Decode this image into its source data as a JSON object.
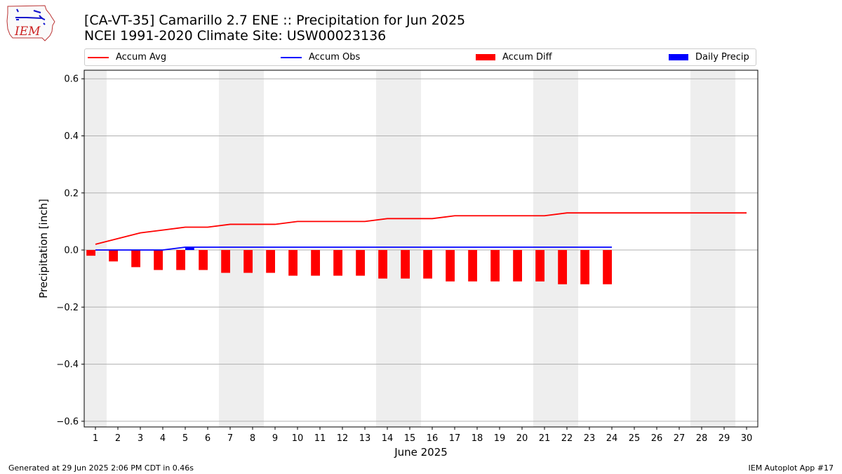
{
  "header": {
    "logo_text": "IEM",
    "title_line1": "[CA-VT-35] Camarillo 2.7 ENE :: Precipitation for Jun 2025",
    "title_line2": "NCEI 1991-2020 Climate Site: USW00023136"
  },
  "legend": {
    "placement": "top",
    "items": [
      {
        "label": "Accum Avg",
        "color": "#ff0000",
        "kind": "line"
      },
      {
        "label": "Accum Obs",
        "color": "#0000ff",
        "kind": "line"
      },
      {
        "label": "Accum Diff",
        "color": "#ff0000",
        "kind": "bar"
      },
      {
        "label": "Daily Precip",
        "color": "#0000ff",
        "kind": "bar"
      }
    ]
  },
  "chart_data": {
    "type": "bar",
    "title": "[CA-VT-35] Camarillo 2.7 ENE :: Precipitation for Jun 2025",
    "subtitle": "NCEI 1991-2020 Climate Site: USW00023136",
    "xlabel": "June 2025",
    "ylabel": "Precipitation [inch]",
    "xlim": [
      0.5,
      30.5
    ],
    "ylim": [
      -0.62,
      0.63
    ],
    "grid": "horizontal",
    "yticks": [
      -0.6,
      -0.4,
      -0.2,
      0.0,
      0.2,
      0.4,
      0.6
    ],
    "ytick_labels": [
      "−0.6",
      "−0.4",
      "−0.2",
      "0.0",
      "0.2",
      "0.4",
      "0.6"
    ],
    "x": [
      1,
      2,
      3,
      4,
      5,
      6,
      7,
      8,
      9,
      10,
      11,
      12,
      13,
      14,
      15,
      16,
      17,
      18,
      19,
      20,
      21,
      22,
      23,
      24,
      25,
      26,
      27,
      28,
      29,
      30
    ],
    "xtick_labels": [
      "1",
      "2",
      "3",
      "4",
      "5",
      "6",
      "7",
      "8",
      "9",
      "10",
      "11",
      "12",
      "13",
      "14",
      "15",
      "16",
      "17",
      "18",
      "19",
      "20",
      "21",
      "22",
      "23",
      "24",
      "25",
      "26",
      "27",
      "28",
      "29",
      "30"
    ],
    "weekend_shading": {
      "color": "#eeeeee",
      "spans": [
        [
          0.5,
          1.5
        ],
        [
          6.5,
          8.5
        ],
        [
          13.5,
          15.5
        ],
        [
          20.5,
          22.5
        ],
        [
          27.5,
          29.5
        ]
      ]
    },
    "series": [
      {
        "name": "Accum Avg",
        "kind": "line",
        "color": "#ff0000",
        "x": [
          1,
          2,
          3,
          4,
          5,
          6,
          7,
          8,
          9,
          10,
          11,
          12,
          13,
          14,
          15,
          16,
          17,
          18,
          19,
          20,
          21,
          22,
          23,
          24,
          25,
          26,
          27,
          28,
          29,
          30
        ],
        "values": [
          0.02,
          0.04,
          0.06,
          0.07,
          0.08,
          0.08,
          0.09,
          0.09,
          0.09,
          0.1,
          0.1,
          0.1,
          0.1,
          0.11,
          0.11,
          0.11,
          0.12,
          0.12,
          0.12,
          0.12,
          0.12,
          0.13,
          0.13,
          0.13,
          0.13,
          0.13,
          0.13,
          0.13,
          0.13,
          0.13
        ]
      },
      {
        "name": "Accum Obs",
        "kind": "line",
        "color": "#0000ff",
        "x": [
          1,
          2,
          3,
          4,
          5,
          6,
          7,
          8,
          9,
          10,
          11,
          12,
          13,
          14,
          15,
          16,
          17,
          18,
          19,
          20,
          21,
          22,
          23,
          24
        ],
        "values": [
          0.0,
          0.0,
          0.0,
          0.0,
          0.01,
          0.01,
          0.01,
          0.01,
          0.01,
          0.01,
          0.01,
          0.01,
          0.01,
          0.01,
          0.01,
          0.01,
          0.01,
          0.01,
          0.01,
          0.01,
          0.01,
          0.01,
          0.01,
          0.01
        ]
      },
      {
        "name": "Accum Diff",
        "kind": "bar",
        "color": "#ff0000",
        "x": [
          1,
          2,
          3,
          4,
          5,
          6,
          7,
          8,
          9,
          10,
          11,
          12,
          13,
          14,
          15,
          16,
          17,
          18,
          19,
          20,
          21,
          22,
          23,
          24
        ],
        "values": [
          -0.02,
          -0.04,
          -0.06,
          -0.07,
          -0.07,
          -0.07,
          -0.08,
          -0.08,
          -0.08,
          -0.09,
          -0.09,
          -0.09,
          -0.09,
          -0.1,
          -0.1,
          -0.1,
          -0.11,
          -0.11,
          -0.11,
          -0.11,
          -0.11,
          -0.12,
          -0.12,
          -0.12
        ]
      },
      {
        "name": "Daily Precip",
        "kind": "bar",
        "color": "#0000ff",
        "x": [
          1,
          2,
          3,
          4,
          5,
          6,
          7,
          8,
          9,
          10,
          11,
          12,
          13,
          14,
          15,
          16,
          17,
          18,
          19,
          20,
          21,
          22,
          23,
          24
        ],
        "values": [
          0,
          0,
          0,
          0,
          0.01,
          0,
          0,
          0,
          0,
          0,
          0,
          0,
          0,
          0,
          0,
          0,
          0,
          0,
          0,
          0,
          0,
          0,
          0,
          0
        ]
      }
    ]
  },
  "footer": {
    "generated": "Generated at 29 Jun 2025 2:06 PM CDT in 0.46s",
    "app": "IEM Autoplot App #17"
  }
}
